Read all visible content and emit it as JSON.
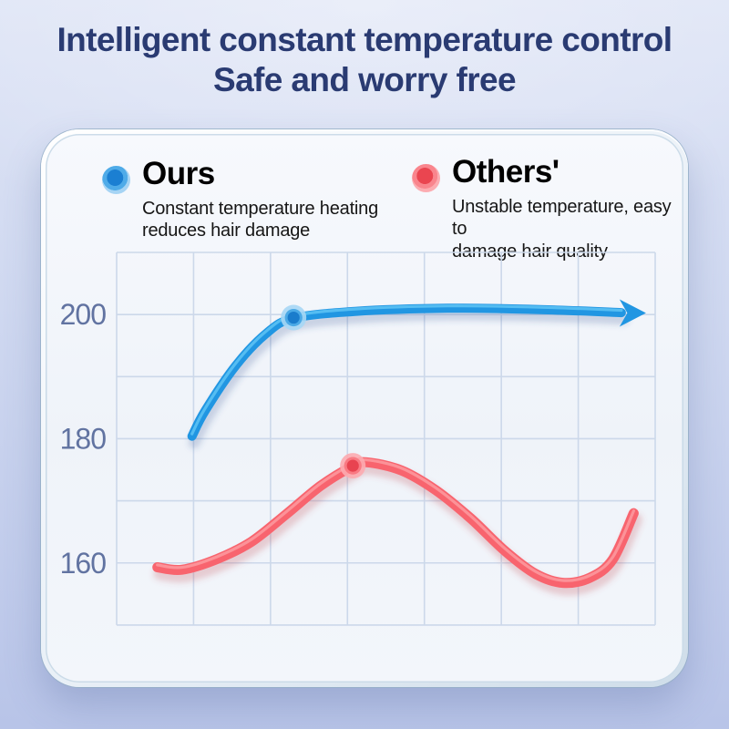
{
  "header": {
    "title_line1": "Intelligent constant temperature control",
    "title_line2": "Safe and worry free",
    "title_color": "#2a3b72"
  },
  "legend": {
    "ours": {
      "label": "Ours",
      "desc": [
        "Constant temperature heating",
        "reduces hair damage"
      ],
      "dot_color": "#1b7fd2"
    },
    "others": {
      "label": "Others'",
      "desc": [
        "Unstable temperature, easy to",
        "damage hair quality"
      ],
      "dot_color": "#ea4550"
    }
  },
  "colors": {
    "background_top": "#dfe5f6",
    "background_bottom": "#b8c4e8",
    "card_fill": "#f3f6fb",
    "grid_line": "#ccd8ea",
    "tick_label": "#6173a1"
  },
  "chart_data": {
    "type": "line",
    "title": "",
    "xlabel": "",
    "ylabel": "",
    "yticks": [
      200,
      180,
      160
    ],
    "y_range": [
      150,
      210
    ],
    "x_range": [
      0,
      7
    ],
    "grid": {
      "enabled": true,
      "cols": 7,
      "rows": 6,
      "y_step_units": 10
    },
    "legend_position": "top",
    "series": [
      {
        "name": "Ours",
        "color": "#2196e2",
        "highlight": "#5ec4f5",
        "shadow": "rgba(47,86,148,0.22)",
        "halo": "#a6d7f5",
        "ring": "#4aa9e6",
        "center": "#1a7ccc",
        "stroke_width": 10,
        "points": [
          [
            0.98,
            180.4
          ],
          [
            1.15,
            184.5
          ],
          [
            1.55,
            191.8
          ],
          [
            1.95,
            197.0
          ],
          [
            2.3,
            199.4
          ],
          [
            3.1,
            200.5
          ],
          [
            4.3,
            201.0
          ],
          [
            5.5,
            200.8
          ],
          [
            6.56,
            200.3
          ]
        ],
        "marker": [
          2.3,
          199.5
        ],
        "arrow_tip": [
          6.88,
          200.25
        ]
      },
      {
        "name": "Others'",
        "color": "#f8646e",
        "highlight": "#fd9aa0",
        "shadow": "rgba(196,74,86,0.25)",
        "halo": "#fcabb0",
        "ring": "#f97a83",
        "center": "#e84350",
        "stroke_width": 11,
        "points": [
          [
            0.53,
            159.3
          ],
          [
            0.85,
            158.9
          ],
          [
            1.3,
            160.6
          ],
          [
            1.75,
            163.4
          ],
          [
            2.2,
            167.8
          ],
          [
            2.65,
            172.4
          ],
          [
            3.07,
            175.6
          ],
          [
            3.25,
            176.2
          ],
          [
            3.7,
            174.9
          ],
          [
            4.15,
            171.7
          ],
          [
            4.6,
            167.2
          ],
          [
            5.05,
            161.9
          ],
          [
            5.45,
            158.2
          ],
          [
            5.8,
            156.8
          ],
          [
            6.15,
            157.6
          ],
          [
            6.45,
            160.6
          ],
          [
            6.72,
            168.0
          ]
        ],
        "marker": [
          3.07,
          175.65
        ],
        "arrow_tip": null
      }
    ]
  }
}
